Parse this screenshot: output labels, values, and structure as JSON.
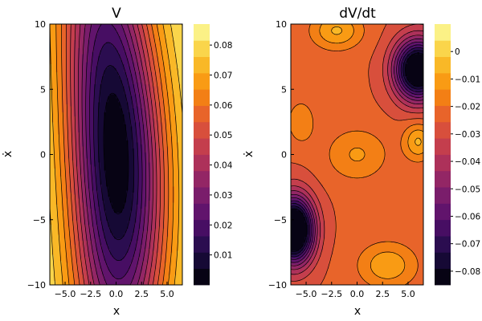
{
  "chart_data": [
    {
      "type": "contour",
      "title": "V",
      "xlabel": "x",
      "ylabel": "ẋ",
      "xlim": [
        -6.5,
        6.5
      ],
      "ylim": [
        -10,
        10
      ],
      "xticks": [
        -5,
        -2.5,
        0,
        2.5,
        5
      ],
      "xtick_labels": [
        "−5.0",
        "−2.5",
        "0.0",
        "2.5",
        "5.0"
      ],
      "yticks": [
        -10,
        -5,
        0,
        5,
        10
      ],
      "ytick_labels": [
        "−10",
        "−5",
        "0",
        "5",
        "10"
      ],
      "colorbar": {
        "colormap": "inferno",
        "range": [
          0,
          0.087
        ],
        "ticks": [
          0.01,
          0.02,
          0.03,
          0.04,
          0.05,
          0.06,
          0.07,
          0.08
        ],
        "tick_labels": [
          "0.01",
          "0.02",
          "0.03",
          "0.04",
          "0.05",
          "0.06",
          "0.07",
          "0.08"
        ]
      }
    },
    {
      "type": "contour",
      "title": "dV/dt",
      "xlabel": "x",
      "ylabel": "ẋ",
      "xlim": [
        -6.5,
        6.5
      ],
      "ylim": [
        -10,
        10
      ],
      "xticks": [
        -5,
        -2.5,
        0,
        2.5,
        5
      ],
      "xtick_labels": [
        "−5.0",
        "−2.5",
        "0.0",
        "2.5",
        "5.0"
      ],
      "yticks": [
        -10,
        -5,
        0,
        5,
        10
      ],
      "ytick_labels": [
        "−10",
        "−5",
        "0",
        "5",
        "10"
      ],
      "colorbar": {
        "colormap": "inferno",
        "range": [
          -0.085,
          0.01
        ],
        "ticks": [
          -0.08,
          -0.07,
          -0.06,
          -0.05,
          -0.04,
          -0.03,
          -0.02,
          -0.01,
          0
        ],
        "tick_labels": [
          "−0.08",
          "−0.07",
          "−0.06",
          "−0.05",
          "−0.04",
          "−0.03",
          "−0.02",
          "−0.01",
          "0"
        ]
      }
    }
  ]
}
